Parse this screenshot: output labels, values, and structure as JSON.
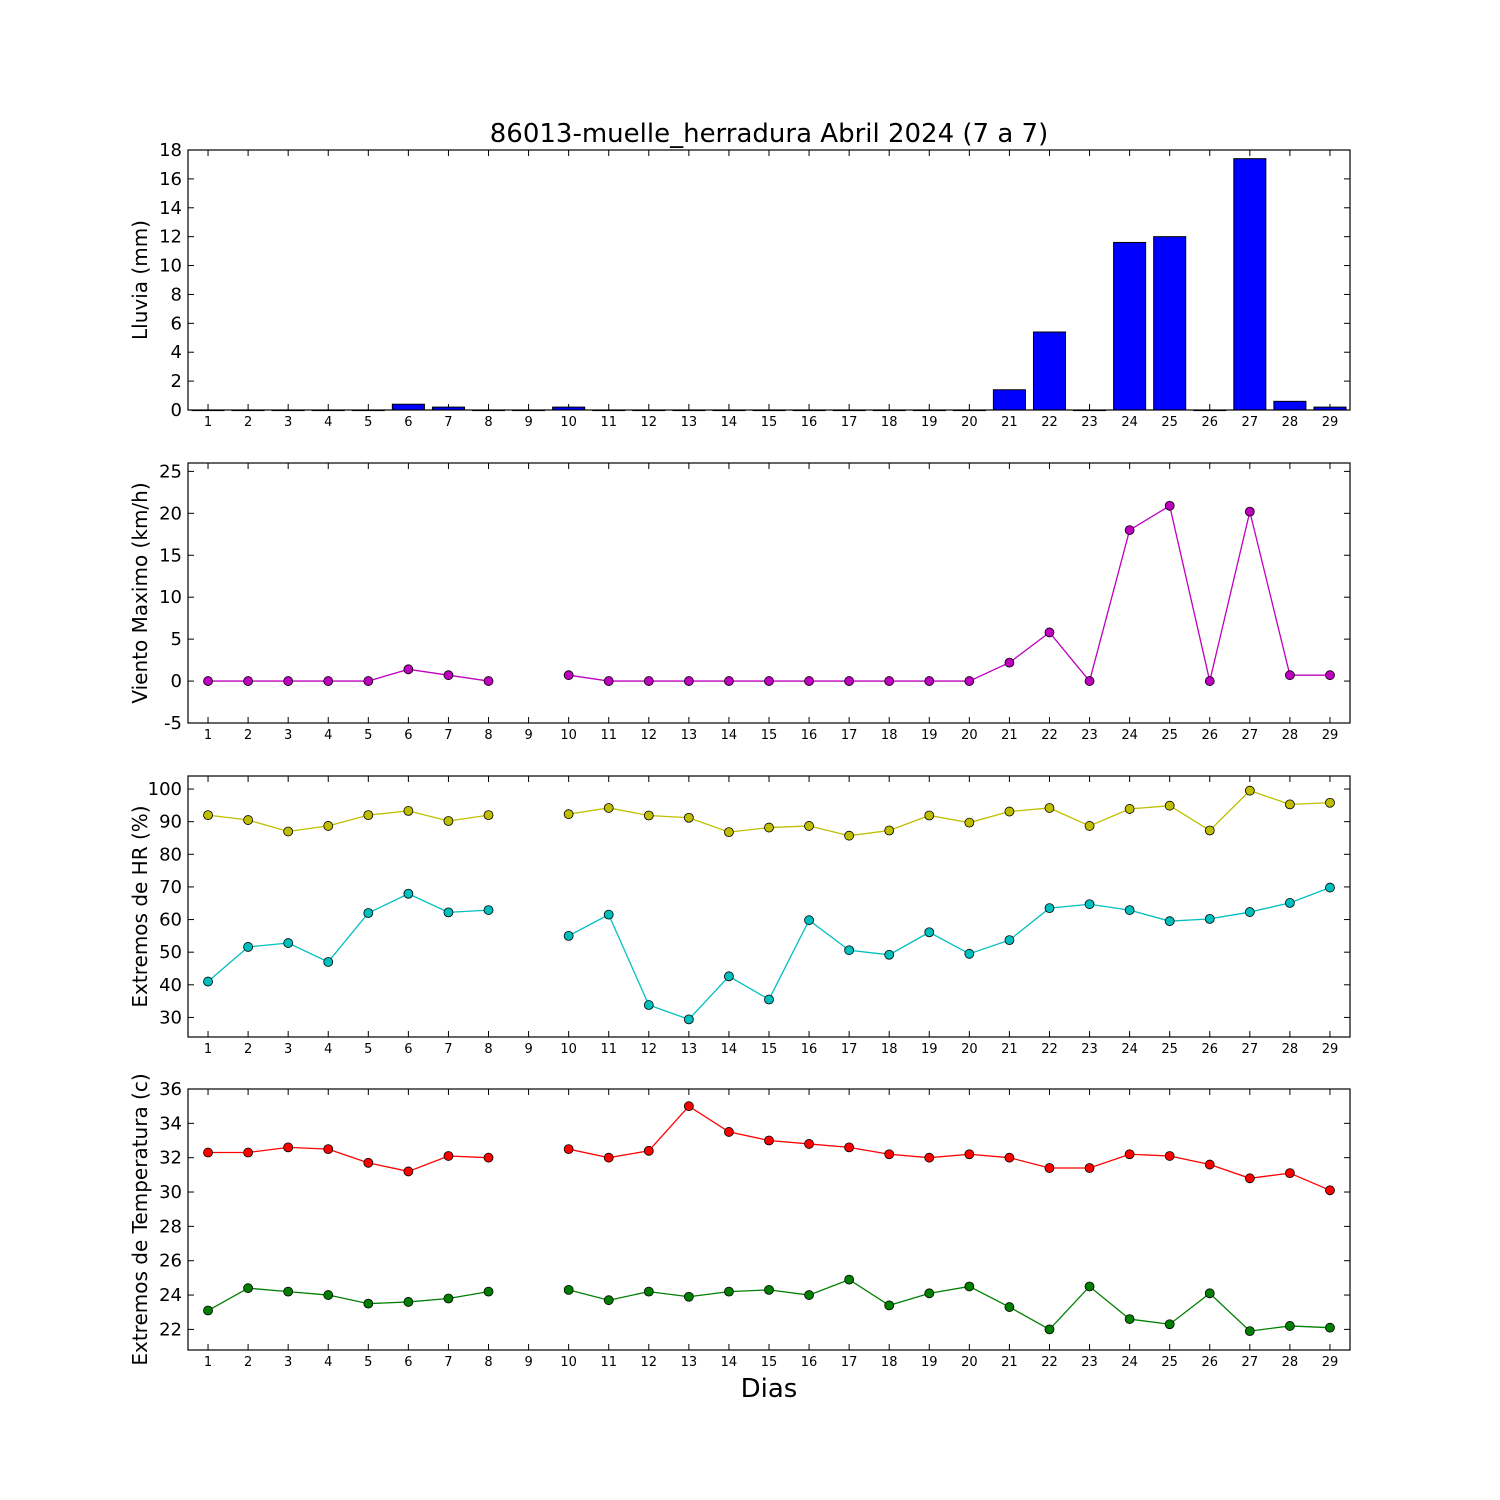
{
  "title": "86013-muelle_herradura Abril 2024  (7 a 7)",
  "xlabel": "Dias",
  "chart_data": [
    {
      "type": "bar",
      "ylabel": "Lluvia (mm)",
      "ylim": [
        0,
        18
      ],
      "yticks": [
        0,
        2,
        4,
        6,
        8,
        10,
        12,
        14,
        16,
        18
      ],
      "categories": [
        1,
        2,
        3,
        4,
        5,
        6,
        7,
        8,
        9,
        10,
        11,
        12,
        13,
        14,
        15,
        16,
        17,
        18,
        19,
        20,
        21,
        22,
        23,
        24,
        25,
        26,
        27,
        28,
        29
      ],
      "values": [
        0,
        0,
        0,
        0,
        0,
        0.4,
        0.2,
        0,
        0,
        0.2,
        0,
        0,
        0,
        0,
        0,
        0,
        0,
        0,
        0,
        0,
        1.4,
        5.4,
        0,
        11.6,
        12.0,
        0,
        17.4,
        0.6,
        0.2
      ],
      "color": "#0000ff"
    },
    {
      "type": "line",
      "ylabel": "Viento Maximo (km/h)",
      "ylim": [
        -5,
        26
      ],
      "yticks": [
        -5,
        0,
        5,
        10,
        15,
        20,
        25
      ],
      "categories": [
        1,
        2,
        3,
        4,
        5,
        6,
        7,
        8,
        9,
        10,
        11,
        12,
        13,
        14,
        15,
        16,
        17,
        18,
        19,
        20,
        21,
        22,
        23,
        24,
        25,
        26,
        27,
        28,
        29
      ],
      "series": [
        {
          "color": "#bf00bf",
          "values": [
            0,
            0,
            0,
            0,
            0,
            1.4,
            0.7,
            0,
            null,
            0.7,
            0,
            0,
            0,
            0,
            0,
            0,
            0,
            0,
            0,
            0,
            2.2,
            5.8,
            0,
            18.0,
            20.9,
            0,
            20.2,
            0.7,
            0.7
          ]
        }
      ]
    },
    {
      "type": "line",
      "ylabel": "Extremos de HR (%)",
      "ylim": [
        24,
        104
      ],
      "yticks": [
        30,
        40,
        50,
        60,
        70,
        80,
        90,
        100
      ],
      "categories": [
        1,
        2,
        3,
        4,
        5,
        6,
        7,
        8,
        9,
        10,
        11,
        12,
        13,
        14,
        15,
        16,
        17,
        18,
        19,
        20,
        21,
        22,
        23,
        24,
        25,
        26,
        27,
        28,
        29
      ],
      "series": [
        {
          "color": "#bfbf00",
          "values": [
            92,
            90.5,
            87,
            88.7,
            92,
            93.3,
            90.2,
            92,
            null,
            92.3,
            94.2,
            91.9,
            91.2,
            86.8,
            88.2,
            88.7,
            85.7,
            87.3,
            91.9,
            89.7,
            93.1,
            94.2,
            88.7,
            93.9,
            94.9,
            87.3,
            99.5,
            95.3,
            95.8
          ]
        },
        {
          "color": "#00bfbf",
          "values": [
            41,
            51.6,
            52.8,
            47,
            62,
            67.9,
            62.2,
            62.9,
            null,
            55,
            61.5,
            33.8,
            29.4,
            42.6,
            35.5,
            59.8,
            50.6,
            49.2,
            56.1,
            49.5,
            53.7,
            63.5,
            64.7,
            62.9,
            59.5,
            60.2,
            62.3,
            65.1,
            69.8
          ]
        }
      ]
    },
    {
      "type": "line",
      "ylabel": "Extremos de Temperatura (c)",
      "ylim": [
        20.8,
        36
      ],
      "yticks": [
        22,
        24,
        26,
        28,
        30,
        32,
        34,
        36
      ],
      "categories": [
        1,
        2,
        3,
        4,
        5,
        6,
        7,
        8,
        9,
        10,
        11,
        12,
        13,
        14,
        15,
        16,
        17,
        18,
        19,
        20,
        21,
        22,
        23,
        24,
        25,
        26,
        27,
        28,
        29
      ],
      "series": [
        {
          "color": "#ff0000",
          "values": [
            32.3,
            32.3,
            32.6,
            32.5,
            31.7,
            31.2,
            32.1,
            32.0,
            null,
            32.5,
            32.0,
            32.4,
            35.0,
            33.5,
            33.0,
            32.8,
            32.6,
            32.2,
            32.0,
            32.2,
            32.0,
            31.4,
            31.4,
            32.2,
            32.1,
            31.6,
            30.8,
            31.1,
            30.1
          ]
        },
        {
          "color": "#008000",
          "values": [
            23.1,
            24.4,
            24.2,
            24.0,
            23.5,
            23.6,
            23.8,
            24.2,
            null,
            24.3,
            23.7,
            24.2,
            23.9,
            24.2,
            24.3,
            24.0,
            24.9,
            23.4,
            24.1,
            24.5,
            23.3,
            22.0,
            24.5,
            22.6,
            22.3,
            24.1,
            21.9,
            22.2,
            22.1
          ]
        }
      ]
    }
  ]
}
